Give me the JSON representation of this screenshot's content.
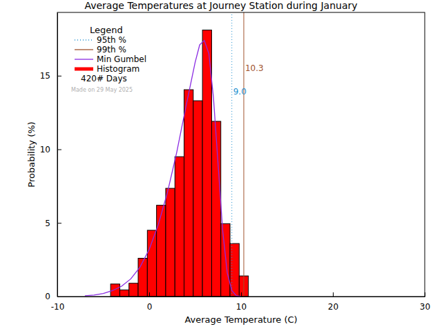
{
  "chart_data": {
    "type": "histogram",
    "title": "Average Temperatures at Journey Station during January",
    "x_label": "Average Temperature (C)",
    "y_label": "Probability (%)",
    "xlim": [
      -10,
      30
    ],
    "ylim": [
      0,
      19.3
    ],
    "xticks": [
      -10,
      0,
      10,
      20,
      30
    ],
    "yticks": [
      0,
      5,
      10,
      15
    ],
    "legend": "upper left",
    "legend_title": "Legend",
    "days_count": 420,
    "days_label": "# Days",
    "footnote": "Made on 29 May 2025",
    "series": [
      {
        "name": "95th %",
        "type": "vline",
        "color": "#1e8fd0",
        "line_style": "dotted",
        "values": [
          9.0
        ],
        "value_labels": [
          "9.0"
        ]
      },
      {
        "name": "99th %",
        "type": "vline",
        "color": "#a0522d",
        "line_style": "solid",
        "values": [
          10.3
        ]
      },
      {
        "name": "Min Gumbel",
        "type": "line",
        "color": "#8a2be2",
        "line_style": "solid",
        "x": [
          -7,
          -6,
          -5,
          -4,
          -3,
          -2,
          -1,
          0,
          1,
          2,
          3,
          4,
          5,
          5.5,
          6,
          6.5,
          7,
          7.5,
          8,
          8.5,
          9,
          9.5,
          10
        ],
        "values": [
          0.05,
          0.1,
          0.2,
          0.4,
          0.7,
          1.2,
          2.0,
          3.2,
          4.9,
          7.1,
          9.8,
          12.9,
          15.9,
          17.1,
          17.4,
          16.5,
          13.5,
          9.0,
          4.5,
          1.6,
          0.4,
          0.05,
          0.0
        ]
      },
      {
        "name": "Histogram",
        "type": "histogram",
        "color": "#ff0000",
        "bins": [
          -4.2,
          -3.2,
          -2.2,
          -1.2,
          -0.2,
          0.8,
          1.8,
          2.8,
          3.8,
          4.8,
          5.8,
          6.8,
          7.8,
          8.8,
          9.8,
          10.8
        ],
        "values": [
          0.85,
          0.45,
          0.9,
          2.6,
          4.5,
          6.2,
          7.35,
          9.5,
          14.05,
          13.3,
          18.1,
          11.9,
          4.95,
          3.6,
          1.4
        ]
      }
    ]
  }
}
